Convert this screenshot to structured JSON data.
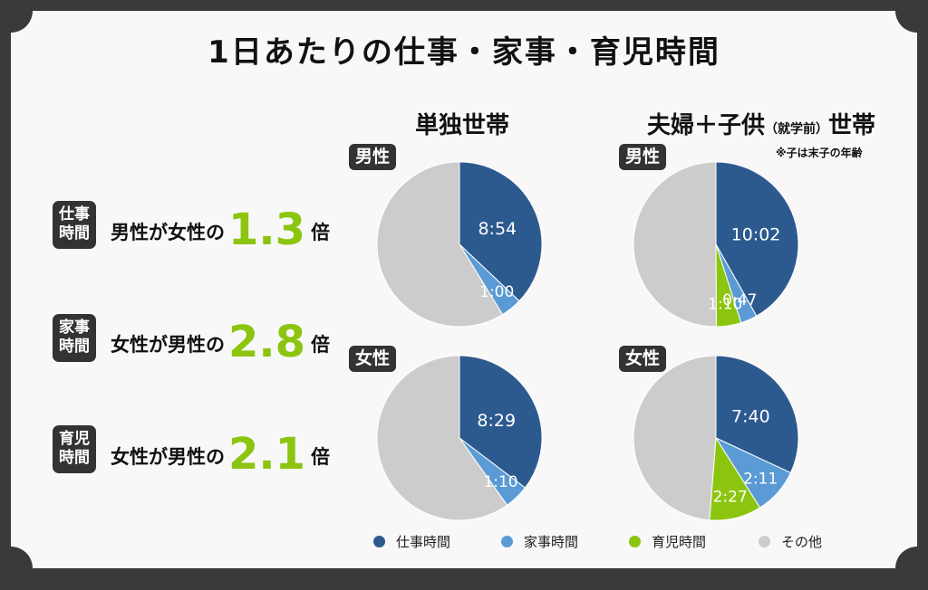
{
  "title": "1日あたりの仕事・家事・育児時間",
  "columns": {
    "single": "単独世帯",
    "family_main": "夫婦＋子供",
    "family_sub": "（就学前）",
    "family_tail": "世帯",
    "note": "※子は末子の年齢"
  },
  "tags": {
    "male": "男性",
    "female": "女性"
  },
  "summary": [
    {
      "tag": [
        "仕事",
        "時間"
      ],
      "lead": "男性が女性の",
      "value": "1.3",
      "unit": "倍"
    },
    {
      "tag": [
        "家事",
        "時間"
      ],
      "lead": "女性が男性の",
      "value": "2.8",
      "unit": "倍"
    },
    {
      "tag": [
        "育児",
        "時間"
      ],
      "lead": "女性が男性の",
      "value": "2.1",
      "unit": "倍"
    }
  ],
  "legend": [
    {
      "label": "仕事時間",
      "color": "#2d5a8e"
    },
    {
      "label": "家事時間",
      "color": "#5b9bd5"
    },
    {
      "label": "育児時間",
      "color": "#8cc50f"
    },
    {
      "label": "その他",
      "color": "#cccccc"
    }
  ],
  "chart_data": [
    {
      "type": "pie",
      "group": "単独世帯",
      "panel": "男性",
      "slices": [
        {
          "category": "仕事時間",
          "label": "8:54",
          "value": 534
        },
        {
          "category": "家事時間",
          "label": "1:00",
          "value": 60
        },
        {
          "category": "その他",
          "label": "",
          "value": 846
        }
      ]
    },
    {
      "type": "pie",
      "group": "単独世帯",
      "panel": "女性",
      "slices": [
        {
          "category": "仕事時間",
          "label": "8:29",
          "value": 509
        },
        {
          "category": "家事時間",
          "label": "1:10",
          "value": 70
        },
        {
          "category": "その他",
          "label": "",
          "value": 861
        }
      ]
    },
    {
      "type": "pie",
      "group": "夫婦＋子供（就学前）世帯",
      "panel": "男性",
      "slices": [
        {
          "category": "仕事時間",
          "label": "10:02",
          "value": 602
        },
        {
          "category": "家事時間",
          "label": "0:47",
          "value": 47
        },
        {
          "category": "育児時間",
          "label": "1:10",
          "value": 70
        },
        {
          "category": "その他",
          "label": "",
          "value": 721
        }
      ]
    },
    {
      "type": "pie",
      "group": "夫婦＋子供（就学前）世帯",
      "panel": "女性",
      "slices": [
        {
          "category": "仕事時間",
          "label": "7:40",
          "value": 460
        },
        {
          "category": "家事時間",
          "label": "2:11",
          "value": 131
        },
        {
          "category": "育児時間",
          "label": "2:27",
          "value": 147
        },
        {
          "category": "その他",
          "label": "",
          "value": 702
        }
      ]
    }
  ]
}
